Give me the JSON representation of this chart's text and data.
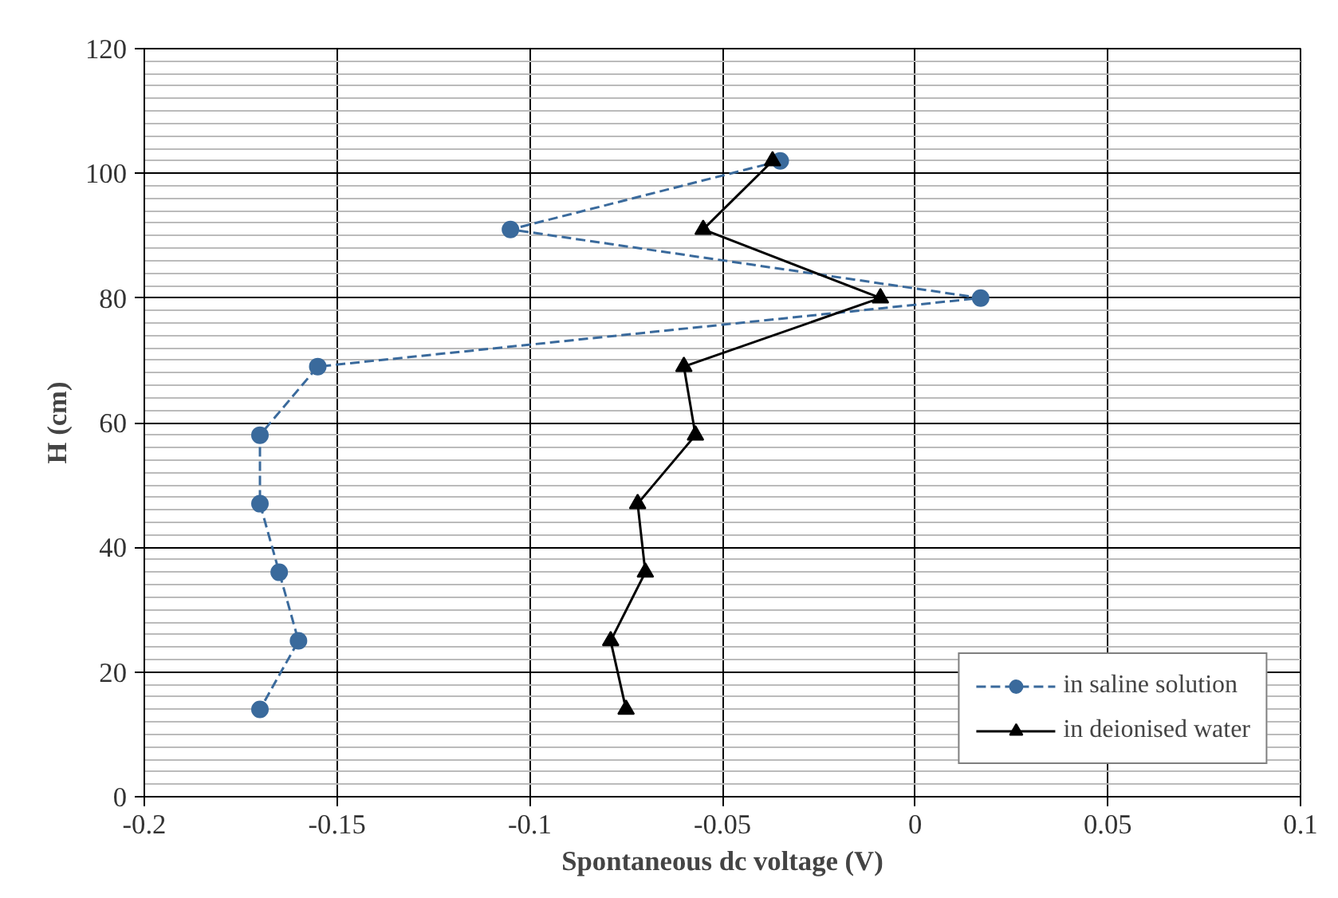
{
  "chart_data": {
    "type": "line",
    "xlabel": "Spontaneous dc voltage (V)",
    "ylabel": "H (cm)",
    "xlim": [
      -0.2,
      0.1
    ],
    "xticks": [
      -0.2,
      -0.15,
      -0.1,
      -0.05,
      0,
      0.05,
      0.1
    ],
    "ylim": [
      0,
      120
    ],
    "yticks": [
      0,
      20,
      40,
      60,
      80,
      100,
      120
    ],
    "grid": true,
    "legend": "bottom right",
    "series": [
      {
        "name": "in saline solution",
        "color": "#3a6a9c",
        "marker": "circle",
        "line_style": "dashed",
        "x": [
          -0.035,
          -0.105,
          0.017,
          -0.155,
          -0.17,
          -0.17,
          -0.165,
          -0.16,
          -0.17
        ],
        "values": [
          102,
          91,
          80,
          69,
          58,
          47,
          36,
          25,
          14
        ]
      },
      {
        "name": "in deionised water",
        "color": "#000000",
        "marker": "triangle",
        "line_style": "solid",
        "x": [
          -0.037,
          -0.055,
          -0.009,
          -0.06,
          -0.057,
          -0.072,
          -0.07,
          -0.079,
          -0.075
        ],
        "values": [
          102,
          91,
          80,
          69,
          58,
          47,
          36,
          25,
          14
        ]
      }
    ]
  }
}
